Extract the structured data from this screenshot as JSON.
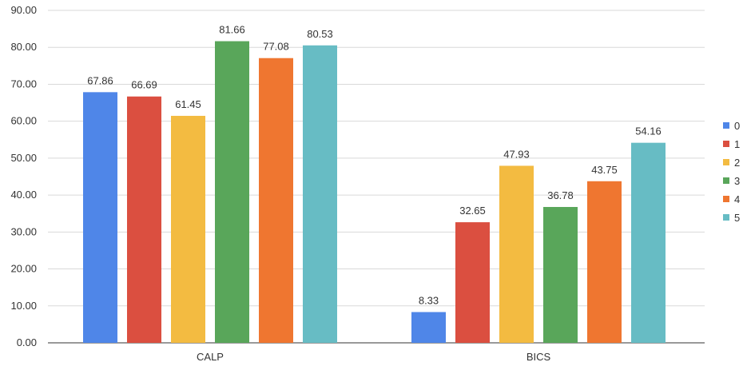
{
  "chart_data": {
    "type": "bar",
    "categories": [
      "CALP",
      "BICS"
    ],
    "series": [
      {
        "name": "0",
        "values": [
          67.86,
          8.33
        ],
        "color": "#4f86e8"
      },
      {
        "name": "1",
        "values": [
          66.69,
          32.65
        ],
        "color": "#db4f40"
      },
      {
        "name": "2",
        "values": [
          61.45,
          47.93
        ],
        "color": "#f3bb41"
      },
      {
        "name": "3",
        "values": [
          81.66,
          36.78
        ],
        "color": "#59a65a"
      },
      {
        "name": "4",
        "values": [
          77.08,
          43.75
        ],
        "color": "#ef7630"
      },
      {
        "name": "5",
        "values": [
          80.53,
          54.16
        ],
        "color": "#67bcc4"
      }
    ],
    "y_ticks": [
      "0.00",
      "10.00",
      "20.00",
      "30.00",
      "40.00",
      "50.00",
      "60.00",
      "70.00",
      "80.00",
      "90.00"
    ],
    "ylim": [
      0,
      90
    ],
    "grid": true,
    "legend_position": "right"
  }
}
